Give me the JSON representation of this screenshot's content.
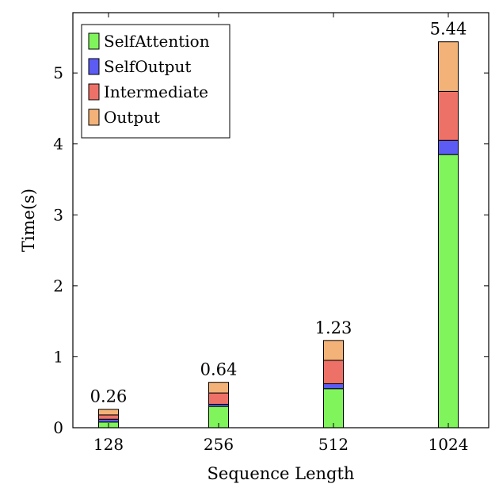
{
  "chart_data": {
    "type": "bar",
    "stacked": true,
    "categories": [
      "128",
      "256",
      "512",
      "1024"
    ],
    "series": [
      {
        "name": "SelfAttention",
        "color": "#7ff55b",
        "values": [
          0.08,
          0.3,
          0.55,
          3.85
        ]
      },
      {
        "name": "SelfOutput",
        "color": "#5c5cf5",
        "values": [
          0.04,
          0.03,
          0.07,
          0.2
        ]
      },
      {
        "name": "Intermediate",
        "color": "#ee7168",
        "values": [
          0.06,
          0.16,
          0.33,
          0.69
        ]
      },
      {
        "name": "Output",
        "color": "#f3b277",
        "values": [
          0.08,
          0.15,
          0.28,
          0.7
        ]
      }
    ],
    "totals": [
      "0.26",
      "0.64",
      "1.23",
      "5.44"
    ],
    "xlabel": "Sequence Length",
    "ylabel": "Time(s)",
    "ylim": [
      0,
      5.85
    ],
    "yticks": [
      0,
      1,
      2,
      3,
      4,
      5
    ],
    "legend_position": "top-left",
    "grid": false
  }
}
